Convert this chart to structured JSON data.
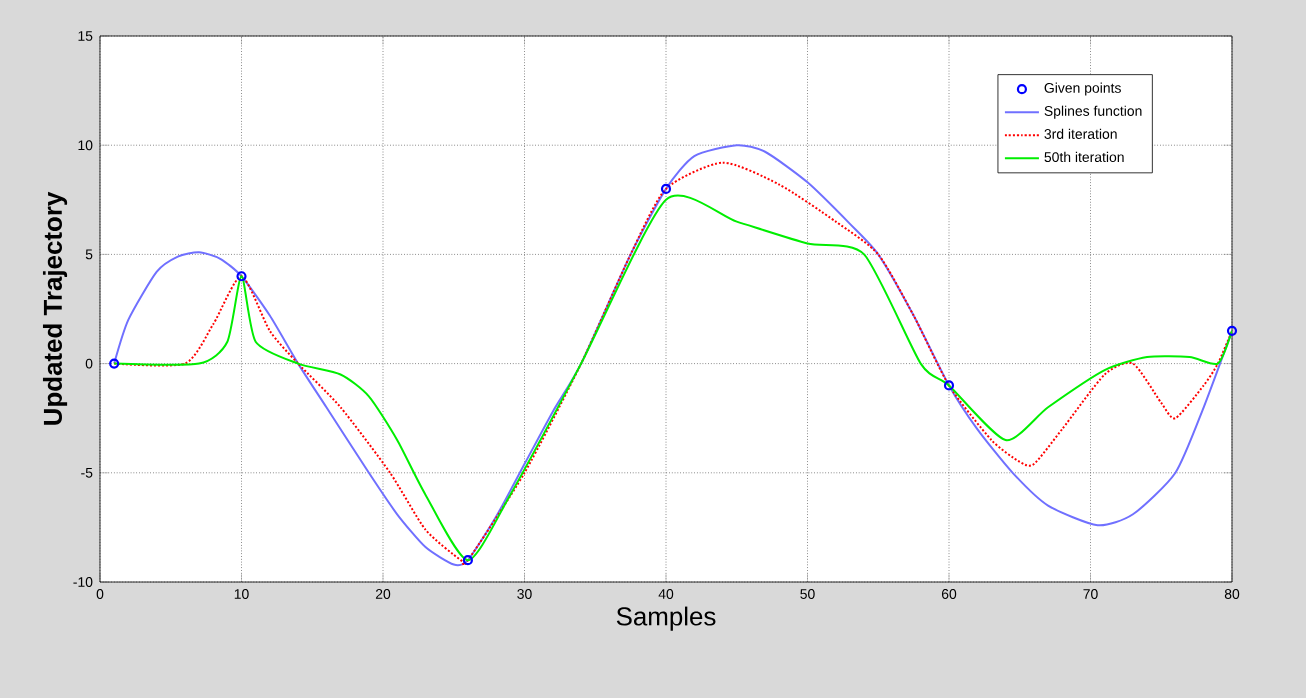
{
  "chart_data": {
    "type": "line",
    "xlabel": "Samples",
    "ylabel": "Updated Trajectory",
    "xlim": [
      0,
      80
    ],
    "ylim": [
      -10,
      15
    ],
    "xticks": [
      0,
      10,
      20,
      30,
      40,
      50,
      60,
      70,
      80
    ],
    "yticks": [
      -10,
      -5,
      0,
      5,
      10,
      15
    ],
    "grid": true,
    "legend": "top right",
    "series": [
      {
        "name": "Given points",
        "type": "scatter",
        "marker": "circle",
        "color": "#0000ff",
        "x": [
          1,
          10,
          26,
          40,
          60,
          80
        ],
        "values": [
          0,
          4,
          -9,
          8,
          -1,
          1.5
        ]
      },
      {
        "name": "Splines function",
        "line_style": "solid",
        "color": "#7070ff",
        "x": [
          1,
          2,
          4,
          5.5,
          7,
          8.5,
          10,
          12,
          14,
          16,
          19,
          21,
          23,
          25,
          26,
          28,
          30,
          32,
          34,
          37.5,
          40,
          42,
          45,
          47,
          50,
          53,
          55,
          57.5,
          60,
          62,
          64.5,
          67,
          70.5,
          73,
          76,
          78,
          80
        ],
        "values": [
          0,
          2,
          4.2,
          4.9,
          5.1,
          4.8,
          4,
          2.2,
          0,
          -2,
          -5,
          -6.9,
          -8.4,
          -9.2,
          -9,
          -7,
          -4.6,
          -2.2,
          0,
          5,
          8,
          9.5,
          10,
          9.7,
          8.3,
          6.4,
          5,
          2.2,
          -1,
          -3,
          -5,
          -6.5,
          -7.4,
          -6.9,
          -5,
          -2,
          1.5
        ]
      },
      {
        "name": "3rd iteration",
        "line_style": "dotted",
        "color": "#ff0000",
        "x": [
          1,
          6,
          8,
          10,
          12,
          14,
          17,
          20.5,
          23,
          25.5,
          26,
          30,
          34,
          37.5,
          40,
          44,
          48,
          52,
          55,
          57.5,
          60,
          63,
          65,
          66,
          68,
          71,
          73,
          75,
          76,
          78,
          79,
          80
        ],
        "values": [
          0,
          0,
          1.8,
          4,
          1.5,
          0,
          -2,
          -5,
          -7.6,
          -9,
          -9,
          -5,
          0,
          5,
          8,
          9.2,
          8.2,
          6.5,
          5,
          2.2,
          -1,
          -3.5,
          -4.5,
          -4.6,
          -3,
          -0.5,
          0,
          -1.8,
          -2.5,
          -1,
          0,
          1.5
        ]
      },
      {
        "name": "50th iteration",
        "line_style": "solid",
        "color": "#00ee00",
        "x": [
          1,
          7,
          9,
          10,
          11,
          14,
          17,
          19,
          21,
          23,
          26,
          29,
          34,
          40,
          45,
          50,
          54,
          58,
          60,
          64,
          67,
          71,
          74,
          77,
          79,
          80
        ],
        "values": [
          0,
          0,
          1,
          4,
          1,
          0,
          -0.5,
          -1.5,
          -3.5,
          -6,
          -9,
          -6,
          0,
          7.5,
          6.5,
          5.5,
          5,
          0,
          -1,
          -3.5,
          -2,
          -0.3,
          0.3,
          0.3,
          0,
          1.5
        ]
      }
    ]
  }
}
